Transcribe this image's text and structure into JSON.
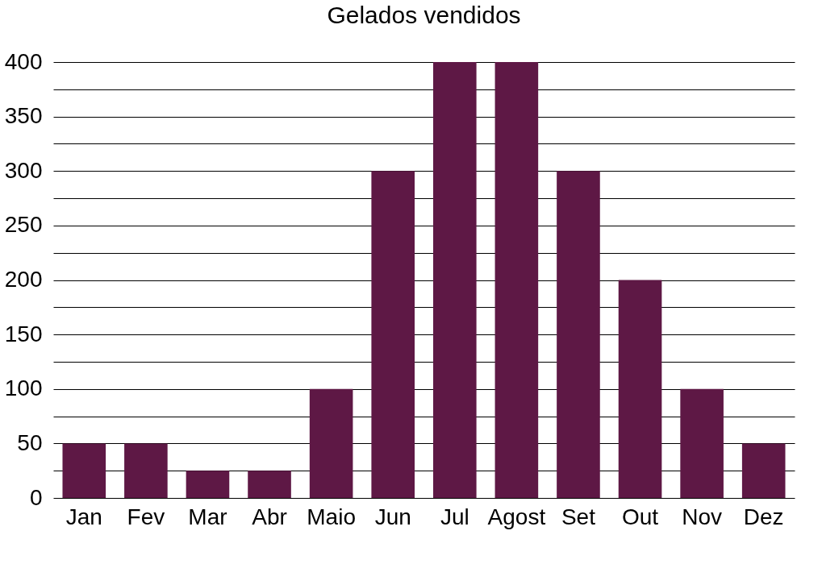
{
  "chart_data": {
    "type": "bar",
    "title": "Gelados vendidos",
    "categories": [
      "Jan",
      "Fev",
      "Mar",
      "Abr",
      "Maio",
      "Jun",
      "Jul",
      "Agost",
      "Set",
      "Out",
      "Nov",
      "Dez"
    ],
    "values": [
      50,
      50,
      25,
      25,
      100,
      300,
      400,
      400,
      300,
      200,
      100,
      50
    ],
    "color": "#5e1845",
    "ylim": [
      0,
      400
    ],
    "yticks": [
      0,
      {
        "value": 25,
        "label": null
      },
      50,
      {
        "value": 75,
        "label": null
      },
      100,
      {
        "value": 125,
        "label": null
      },
      150,
      {
        "value": 175,
        "label": null
      },
      200,
      {
        "value": 225,
        "label": null
      },
      250,
      {
        "value": 275,
        "label": null
      },
      300,
      {
        "value": 325,
        "label": null
      },
      350,
      {
        "value": 375,
        "label": null
      },
      400
    ],
    "grid": true
  }
}
